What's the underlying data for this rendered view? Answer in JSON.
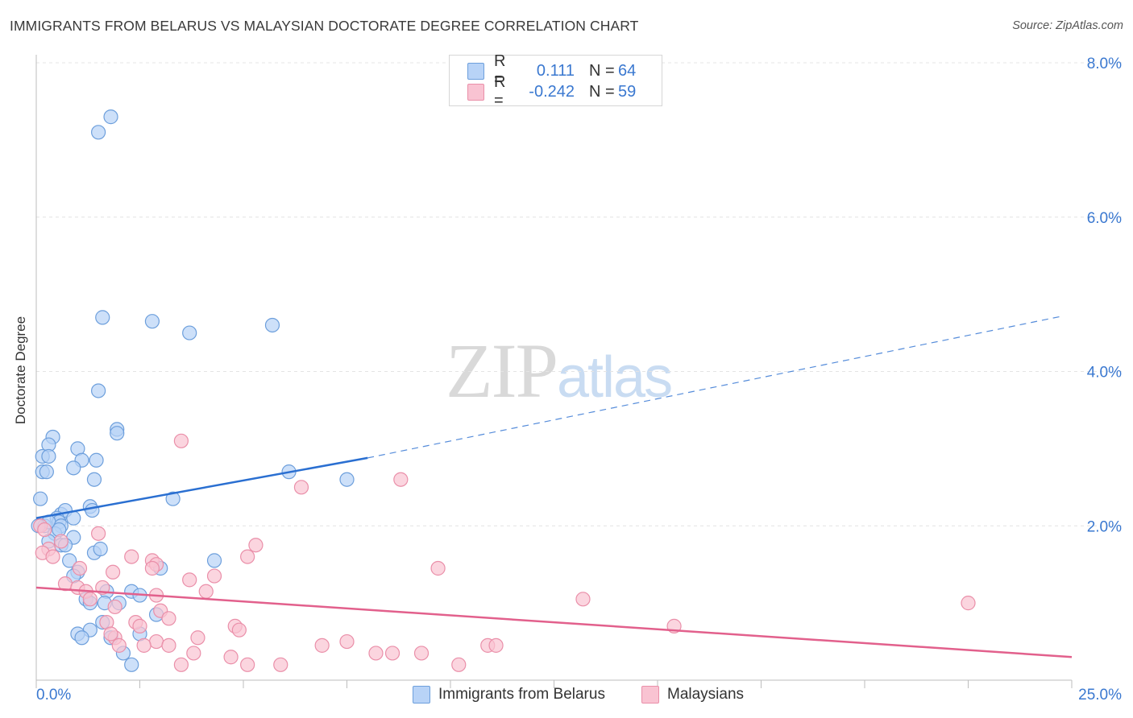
{
  "title": "IMMIGRANTS FROM BELARUS VS MALAYSIAN DOCTORATE DEGREE CORRELATION CHART",
  "source": "Source: ZipAtlas.com",
  "watermark": {
    "zip": "ZIP",
    "atlas": "atlas"
  },
  "colors": {
    "blue_fill": "#b8d3f7",
    "blue_stroke": "#6d9fdc",
    "blue_line": "#2a6fd1",
    "pink_fill": "#f9c3d2",
    "pink_stroke": "#ea8fa9",
    "pink_line": "#e2608c",
    "tick_label": "#3a78d0",
    "grid": "#e4e4e4"
  },
  "legend": {
    "rows": [
      {
        "r_label": "R =",
        "r_value": "0.111",
        "n_label": "N =",
        "n_value": "64"
      },
      {
        "r_label": "R =",
        "r_value": "-0.242",
        "n_label": "N =",
        "n_value": "59"
      }
    ]
  },
  "chart_data": {
    "type": "scatter",
    "title": "IMMIGRANTS FROM BELARUS VS MALAYSIAN DOCTORATE DEGREE CORRELATION CHART",
    "xlabel": "",
    "ylabel": "Doctorate Degree",
    "xlim": [
      0,
      25
    ],
    "ylim": [
      0,
      8
    ],
    "x_tick_labels": [
      "0.0%",
      "25.0%"
    ],
    "y_ticks": [
      2,
      4,
      6,
      8
    ],
    "y_tick_labels": [
      "2.0%",
      "4.0%",
      "6.0%",
      "8.0%"
    ],
    "grid": true,
    "legend_position": "bottom",
    "series": [
      {
        "name": "Immigrants from Belarus",
        "color": "blue",
        "trend": {
          "x0": 0,
          "y0": 2.1,
          "x1": 8,
          "y1": 2.88,
          "dashed_to_x": 24.8,
          "dashed_to_y": 4.72
        },
        "points": [
          [
            1.5,
            7.1
          ],
          [
            1.8,
            7.3
          ],
          [
            1.6,
            4.7
          ],
          [
            2.8,
            4.65
          ],
          [
            3.7,
            4.5
          ],
          [
            5.7,
            4.6
          ],
          [
            1.5,
            3.75
          ],
          [
            0.4,
            3.15
          ],
          [
            0.3,
            3.05
          ],
          [
            1.95,
            3.25
          ],
          [
            1.95,
            3.2
          ],
          [
            1.0,
            3.0
          ],
          [
            0.15,
            2.9
          ],
          [
            0.3,
            2.9
          ],
          [
            1.1,
            2.85
          ],
          [
            1.45,
            2.85
          ],
          [
            0.9,
            2.75
          ],
          [
            0.15,
            2.7
          ],
          [
            0.25,
            2.7
          ],
          [
            1.4,
            2.6
          ],
          [
            6.1,
            2.7
          ],
          [
            7.5,
            2.6
          ],
          [
            0.1,
            2.35
          ],
          [
            3.3,
            2.35
          ],
          [
            1.3,
            2.25
          ],
          [
            1.35,
            2.2
          ],
          [
            0.6,
            2.15
          ],
          [
            0.7,
            2.2
          ],
          [
            0.5,
            2.1
          ],
          [
            0.9,
            2.1
          ],
          [
            0.55,
            2.05
          ],
          [
            0.2,
            2.0
          ],
          [
            0.3,
            2.05
          ],
          [
            0.6,
            2.0
          ],
          [
            0.45,
            1.9
          ],
          [
            0.55,
            1.95
          ],
          [
            0.9,
            1.85
          ],
          [
            0.3,
            1.8
          ],
          [
            0.6,
            1.75
          ],
          [
            0.7,
            1.75
          ],
          [
            1.4,
            1.65
          ],
          [
            1.55,
            1.7
          ],
          [
            0.8,
            1.55
          ],
          [
            4.3,
            1.55
          ],
          [
            3.0,
            1.45
          ],
          [
            1.0,
            1.4
          ],
          [
            0.9,
            1.35
          ],
          [
            1.7,
            1.15
          ],
          [
            2.3,
            1.15
          ],
          [
            2.5,
            1.1
          ],
          [
            1.2,
            1.05
          ],
          [
            1.3,
            1.0
          ],
          [
            1.65,
            1.0
          ],
          [
            2.0,
            1.0
          ],
          [
            2.9,
            0.85
          ],
          [
            1.6,
            0.75
          ],
          [
            1.3,
            0.65
          ],
          [
            1.0,
            0.6
          ],
          [
            2.5,
            0.6
          ],
          [
            1.1,
            0.55
          ],
          [
            1.8,
            0.55
          ],
          [
            2.1,
            0.35
          ],
          [
            2.3,
            0.2
          ],
          [
            0.05,
            2.0
          ]
        ]
      },
      {
        "name": "Malaysians",
        "color": "pink",
        "trend": {
          "x0": 0,
          "y0": 1.2,
          "x1": 25,
          "y1": 0.3
        },
        "points": [
          [
            3.5,
            3.1
          ],
          [
            6.4,
            2.5
          ],
          [
            8.8,
            2.6
          ],
          [
            0.1,
            2.0
          ],
          [
            0.2,
            1.95
          ],
          [
            1.5,
            1.9
          ],
          [
            0.6,
            1.8
          ],
          [
            0.3,
            1.7
          ],
          [
            0.15,
            1.65
          ],
          [
            0.4,
            1.6
          ],
          [
            5.3,
            1.75
          ],
          [
            5.1,
            1.6
          ],
          [
            2.3,
            1.6
          ],
          [
            2.8,
            1.55
          ],
          [
            2.9,
            1.5
          ],
          [
            2.8,
            1.45
          ],
          [
            1.05,
            1.45
          ],
          [
            1.85,
            1.4
          ],
          [
            3.7,
            1.3
          ],
          [
            4.3,
            1.35
          ],
          [
            9.7,
            1.45
          ],
          [
            0.7,
            1.25
          ],
          [
            1.0,
            1.2
          ],
          [
            1.2,
            1.15
          ],
          [
            1.6,
            1.2
          ],
          [
            4.1,
            1.15
          ],
          [
            2.9,
            1.1
          ],
          [
            13.2,
            1.05
          ],
          [
            22.5,
            1.0
          ],
          [
            1.3,
            1.05
          ],
          [
            1.9,
            0.95
          ],
          [
            3.0,
            0.9
          ],
          [
            3.2,
            0.8
          ],
          [
            2.4,
            0.75
          ],
          [
            2.5,
            0.7
          ],
          [
            1.7,
            0.75
          ],
          [
            4.8,
            0.7
          ],
          [
            4.9,
            0.65
          ],
          [
            15.4,
            0.7
          ],
          [
            1.9,
            0.55
          ],
          [
            2.9,
            0.5
          ],
          [
            3.9,
            0.55
          ],
          [
            7.5,
            0.5
          ],
          [
            2.0,
            0.45
          ],
          [
            2.6,
            0.45
          ],
          [
            3.2,
            0.45
          ],
          [
            6.9,
            0.45
          ],
          [
            10.9,
            0.45
          ],
          [
            11.1,
            0.45
          ],
          [
            3.8,
            0.35
          ],
          [
            8.2,
            0.35
          ],
          [
            8.6,
            0.35
          ],
          [
            9.3,
            0.35
          ],
          [
            4.7,
            0.3
          ],
          [
            3.5,
            0.2
          ],
          [
            5.1,
            0.2
          ],
          [
            5.9,
            0.2
          ],
          [
            10.2,
            0.2
          ],
          [
            1.8,
            0.6
          ]
        ]
      }
    ]
  }
}
